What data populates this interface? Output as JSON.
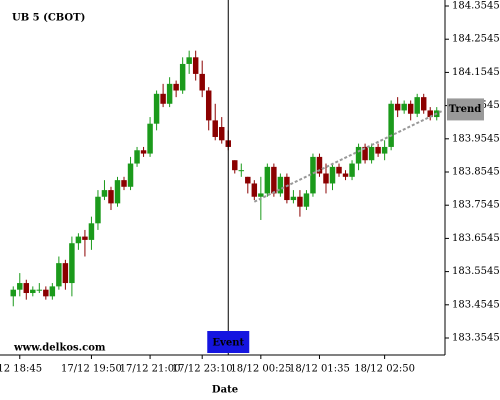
{
  "chart_data": {
    "type": "candlestick",
    "title": "UB 5 (CBOT)",
    "watermark": "www.delkos.com",
    "x_label": "Date",
    "up_color": "#1b9a1b",
    "down_color": "#8b0000",
    "ylim": [
      183.3033,
      184.3726
    ],
    "yticks": [
      183.3545,
      183.4545,
      183.5545,
      183.6545,
      183.7545,
      183.8545,
      183.9545,
      184.0545,
      184.1545,
      184.2545,
      184.3545
    ],
    "xticks": [
      {
        "value": 1,
        "label": "12 18:45"
      },
      {
        "value": 12,
        "label": "17/12 19:50"
      },
      {
        "value": 21,
        "label": "17/12 21:00"
      },
      {
        "value": 29,
        "label": "17/12 23:10"
      },
      {
        "value": 38,
        "label": "18/12 00:25"
      },
      {
        "value": 47,
        "label": "18/12 01:35"
      },
      {
        "value": 57,
        "label": "18/12 02:50"
      }
    ],
    "event": {
      "label": "Event",
      "x": 33
    },
    "trend": {
      "label": "Trend",
      "color": "#999999",
      "x": [
        37,
        66
      ],
      "y": [
        183.765,
        184.04
      ]
    },
    "open": [
      183.48,
      183.5,
      183.52,
      183.49,
      183.5,
      183.5,
      183.48,
      183.51,
      183.58,
      183.52,
      183.64,
      183.66,
      183.65,
      183.7,
      183.78,
      183.8,
      183.76,
      183.83,
      183.81,
      183.88,
      183.92,
      183.91,
      184.0,
      184.09,
      184.06,
      184.12,
      184.1,
      184.18,
      184.2,
      184.15,
      184.1,
      184.01,
      183.99,
      183.95,
      183.89,
      183.86,
      183.84,
      183.82,
      183.78,
      183.79,
      183.87,
      183.79,
      183.84,
      183.77,
      183.78,
      183.75,
      183.79,
      183.9,
      183.85,
      183.82,
      183.87,
      183.85,
      183.84,
      183.88,
      183.93,
      183.89,
      183.93,
      183.91,
      183.93,
      184.06,
      184.04,
      184.06,
      184.03,
      184.08,
      184.04,
      184.02
    ],
    "high": [
      183.51,
      183.55,
      183.53,
      183.51,
      183.52,
      183.51,
      183.52,
      183.6,
      183.59,
      183.66,
      183.67,
      183.68,
      183.72,
      183.8,
      183.83,
      183.81,
      183.84,
      183.84,
      183.9,
      183.93,
      183.93,
      184.02,
      184.1,
      184.12,
      184.14,
      184.13,
      184.2,
      184.22,
      184.22,
      184.19,
      184.11,
      184.06,
      184.02,
      183.98,
      183.89,
      183.88,
      183.84,
      183.83,
      183.84,
      183.88,
      183.88,
      183.85,
      183.85,
      183.8,
      183.8,
      183.8,
      183.91,
      183.91,
      183.88,
      183.88,
      183.88,
      183.86,
      183.89,
      183.94,
      183.94,
      183.94,
      183.94,
      183.95,
      184.07,
      184.08,
      184.07,
      184.07,
      184.09,
      184.09,
      184.05,
      184.05
    ],
    "low": [
      183.45,
      183.48,
      183.47,
      183.48,
      183.49,
      183.47,
      183.47,
      183.5,
      183.5,
      183.48,
      183.62,
      183.6,
      183.62,
      183.68,
      183.77,
      183.74,
      183.75,
      183.8,
      183.8,
      183.87,
      183.9,
      183.9,
      183.98,
      184.05,
      184.05,
      184.08,
      184.09,
      184.15,
      184.13,
      184.08,
      183.98,
      183.95,
      183.94,
      183.92,
      183.85,
      183.84,
      183.79,
      183.77,
      183.71,
      183.78,
      183.78,
      183.78,
      183.76,
      183.76,
      183.72,
      183.74,
      183.78,
      183.84,
      183.79,
      183.8,
      183.84,
      183.83,
      183.83,
      183.86,
      183.88,
      183.88,
      183.9,
      183.89,
      183.92,
      184.02,
      184.03,
      184.01,
      184.02,
      184.03,
      184.01,
      184.01
    ],
    "close": [
      183.5,
      183.52,
      183.49,
      183.5,
      183.5,
      183.48,
      183.51,
      183.58,
      183.52,
      183.64,
      183.66,
      183.65,
      183.7,
      183.78,
      183.8,
      183.76,
      183.83,
      183.81,
      183.88,
      183.92,
      183.91,
      184.0,
      184.09,
      184.06,
      184.12,
      184.1,
      184.18,
      184.2,
      184.15,
      184.1,
      184.01,
      183.96,
      183.95,
      183.93,
      183.86,
      183.86,
      183.82,
      183.78,
      183.79,
      183.87,
      183.79,
      183.84,
      183.77,
      183.78,
      183.75,
      183.79,
      183.9,
      183.85,
      183.82,
      183.87,
      183.85,
      183.84,
      183.88,
      183.93,
      183.89,
      183.93,
      183.91,
      183.93,
      184.06,
      184.04,
      184.06,
      184.03,
      184.08,
      184.04,
      184.02,
      184.04
    ]
  }
}
